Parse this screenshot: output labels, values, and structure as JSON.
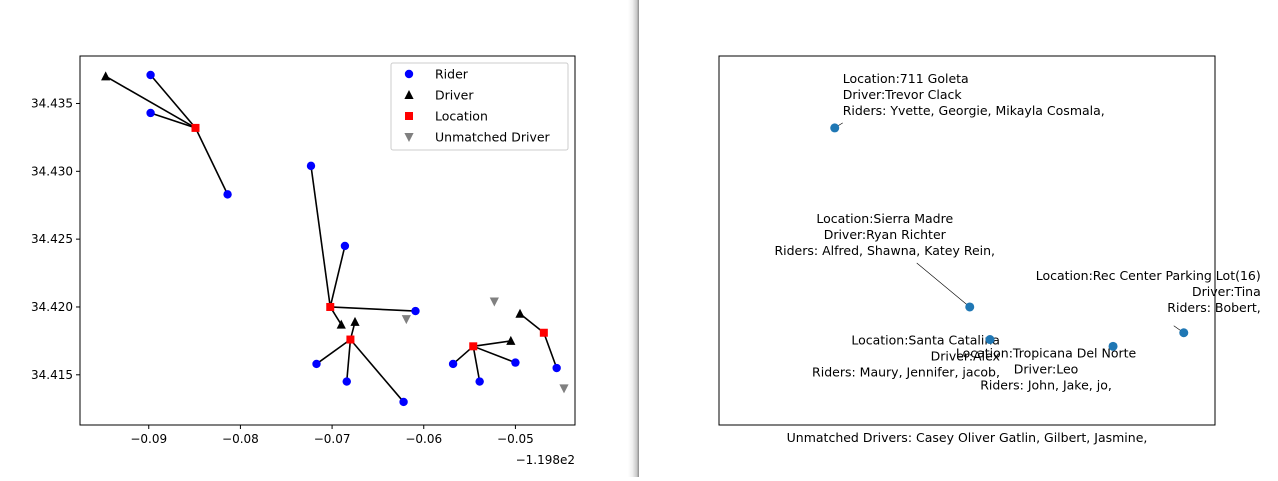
{
  "colors": {
    "rider": "#0000ff",
    "driver": "#000000",
    "location": "#ff0000",
    "unmatched": "#808080",
    "summary_point": "#1f77b4"
  },
  "icons": {
    "rider": "circle-marker",
    "driver": "triangle-up-marker",
    "location": "square-marker",
    "unmatched": "triangle-down-marker"
  },
  "chart_data": [
    {
      "type": "scatter",
      "title": "",
      "xlabel": "",
      "ylabel": "",
      "x_offset_label": "−1.198e2",
      "xlim": [
        -0.0975,
        -0.0435
      ],
      "ylim": [
        34.4113,
        34.4385
      ],
      "xticks": [
        -0.09,
        -0.08,
        -0.07,
        -0.06,
        -0.05
      ],
      "xtick_labels": [
        "−0.09",
        "−0.08",
        "−0.07",
        "−0.06",
        "−0.05"
      ],
      "yticks": [
        34.415,
        34.42,
        34.425,
        34.43,
        34.435
      ],
      "ytick_labels": [
        "34.415",
        "34.420",
        "34.425",
        "34.430",
        "34.435"
      ],
      "grid": false,
      "legend_position": "top-right",
      "legend": [
        {
          "name": "Rider",
          "marker": "circle",
          "color": "#0000ff"
        },
        {
          "name": "Driver",
          "marker": "triangle-up",
          "color": "#000000"
        },
        {
          "name": "Location",
          "marker": "square",
          "color": "#ff0000"
        },
        {
          "name": "Unmatched Driver",
          "marker": "triangle-down",
          "color": "#808080"
        }
      ],
      "series": [
        {
          "name": "Rider",
          "points": [
            [
              -0.0898,
              34.4371
            ],
            [
              -0.0898,
              34.4343
            ],
            [
              -0.0814,
              34.4283
            ],
            [
              -0.0723,
              34.4304
            ],
            [
              -0.0686,
              34.4245
            ],
            [
              -0.0609,
              34.4197
            ],
            [
              -0.0717,
              34.4158
            ],
            [
              -0.0684,
              34.4145
            ],
            [
              -0.0622,
              34.413
            ],
            [
              -0.0568,
              34.4158
            ],
            [
              -0.0539,
              34.4145
            ],
            [
              -0.05,
              34.4159
            ],
            [
              -0.0455,
              34.4155
            ]
          ]
        },
        {
          "name": "Driver",
          "points": [
            [
              -0.0947,
              34.437
            ],
            [
              -0.069,
              34.4187
            ],
            [
              -0.0675,
              34.4189
            ],
            [
              -0.0505,
              34.4175
            ],
            [
              -0.0495,
              34.4195
            ]
          ]
        },
        {
          "name": "Location",
          "points": [
            [
              -0.0849,
              34.4332
            ],
            [
              -0.0702,
              34.42
            ],
            [
              -0.068,
              34.4176
            ],
            [
              -0.0546,
              34.4171
            ],
            [
              -0.0469,
              34.4181
            ]
          ]
        },
        {
          "name": "Unmatched Driver",
          "points": [
            [
              -0.0619,
              34.4191
            ],
            [
              -0.0523,
              34.4204
            ],
            [
              -0.0447,
              34.414
            ]
          ]
        }
      ],
      "links": [
        {
          "from": [
            -0.0947,
            34.437
          ],
          "to": [
            -0.0849,
            34.4332
          ]
        },
        {
          "from": [
            -0.0898,
            34.4371
          ],
          "to": [
            -0.0849,
            34.4332
          ]
        },
        {
          "from": [
            -0.0898,
            34.4343
          ],
          "to": [
            -0.0849,
            34.4332
          ]
        },
        {
          "from": [
            -0.0814,
            34.4283
          ],
          "to": [
            -0.0849,
            34.4332
          ]
        },
        {
          "from": [
            -0.0723,
            34.4304
          ],
          "to": [
            -0.0702,
            34.42
          ]
        },
        {
          "from": [
            -0.0686,
            34.4245
          ],
          "to": [
            -0.0702,
            34.42
          ]
        },
        {
          "from": [
            -0.0609,
            34.4197
          ],
          "to": [
            -0.0702,
            34.42
          ]
        },
        {
          "from": [
            -0.069,
            34.4187
          ],
          "to": [
            -0.0702,
            34.42
          ]
        },
        {
          "from": [
            -0.0675,
            34.4189
          ],
          "to": [
            -0.068,
            34.4176
          ]
        },
        {
          "from": [
            -0.0717,
            34.4158
          ],
          "to": [
            -0.068,
            34.4176
          ]
        },
        {
          "from": [
            -0.0684,
            34.4145
          ],
          "to": [
            -0.068,
            34.4176
          ]
        },
        {
          "from": [
            -0.0622,
            34.413
          ],
          "to": [
            -0.068,
            34.4176
          ]
        },
        {
          "from": [
            -0.0568,
            34.4158
          ],
          "to": [
            -0.0546,
            34.4171
          ]
        },
        {
          "from": [
            -0.0539,
            34.4145
          ],
          "to": [
            -0.0546,
            34.4171
          ]
        },
        {
          "from": [
            -0.05,
            34.4159
          ],
          "to": [
            -0.0546,
            34.4171
          ]
        },
        {
          "from": [
            -0.0505,
            34.4175
          ],
          "to": [
            -0.0546,
            34.4171
          ]
        },
        {
          "from": [
            -0.0495,
            34.4195
          ],
          "to": [
            -0.0469,
            34.4181
          ]
        },
        {
          "from": [
            -0.0455,
            34.4155
          ],
          "to": [
            -0.0469,
            34.4181
          ]
        }
      ]
    },
    {
      "type": "scatter",
      "title": "",
      "xlabel": "Unmatched Drivers: Casey Oliver Gatlin, Gilbert, Jasmine,",
      "ylabel": "",
      "axes_visible": false,
      "xlim": [
        -0.0975,
        -0.0435
      ],
      "ylim": [
        34.4113,
        34.4385
      ],
      "grid": false,
      "points": [
        {
          "x": -0.0849,
          "y": 34.4332,
          "lines": [
            "Location:711 Goleta",
            "Driver:Trevor Clack",
            "Riders: Yvette, Georgie, Mikayla Cosmala,"
          ],
          "label_anchor": "start"
        },
        {
          "x": -0.0702,
          "y": 34.42,
          "lines": [
            "Location:Sierra Madre",
            "Driver:Ryan Richter",
            "Riders: Alfred, Shawna, Katey Rein,"
          ],
          "label_anchor": "middle"
        },
        {
          "x": -0.068,
          "y": 34.4176,
          "lines": [
            "Location:Santa Catalina",
            "Driver:Alex",
            "Riders: Maury, Jennifer, jacob,"
          ],
          "label_anchor": "end"
        },
        {
          "x": -0.0546,
          "y": 34.4171,
          "lines": [
            "Location:Tropicana Del Norte",
            "Driver:Leo",
            "Riders: John, Jake, jo,"
          ],
          "label_anchor": "middle"
        },
        {
          "x": -0.0469,
          "y": 34.4181,
          "lines": [
            "Location:Rec Center Parking Lot(16)",
            "Driver:Tina",
            "Riders: Bobert,"
          ],
          "label_anchor": "end"
        }
      ]
    }
  ]
}
